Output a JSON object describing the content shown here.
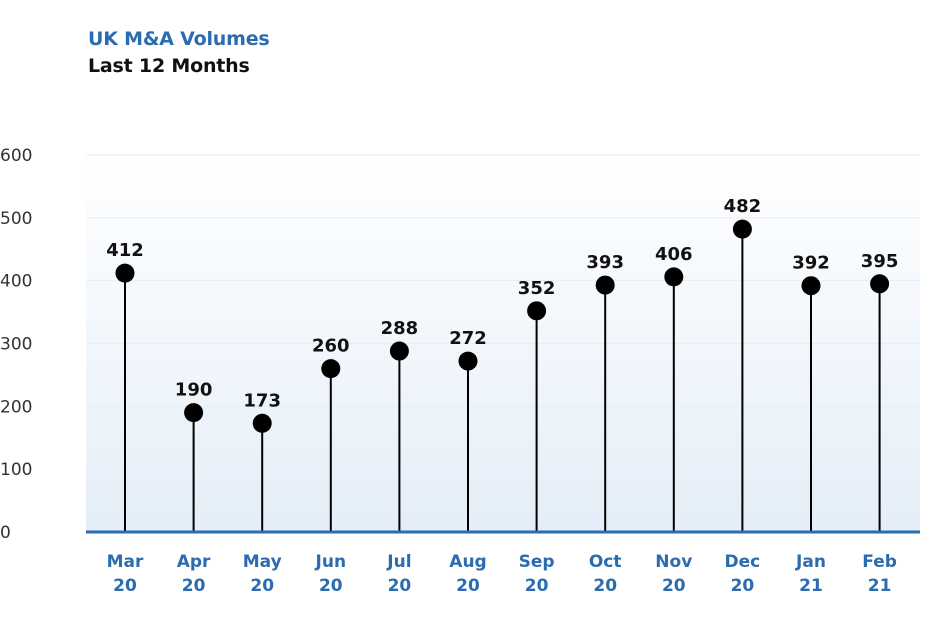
{
  "chart_data": {
    "type": "lollipop",
    "title": "UK M&A Volumes",
    "subtitle": "Last 12 Months",
    "categories": [
      [
        "Mar",
        "20"
      ],
      [
        "Apr",
        "20"
      ],
      [
        "May",
        "20"
      ],
      [
        "Jun",
        "20"
      ],
      [
        "Jul",
        "20"
      ],
      [
        "Aug",
        "20"
      ],
      [
        "Sep",
        "20"
      ],
      [
        "Oct",
        "20"
      ],
      [
        "Nov",
        "20"
      ],
      [
        "Dec",
        "20"
      ],
      [
        "Jan",
        "21"
      ],
      [
        "Feb",
        "21"
      ]
    ],
    "values": [
      412,
      190,
      173,
      260,
      288,
      272,
      352,
      393,
      406,
      482,
      392,
      395
    ],
    "yticks": [
      0,
      100,
      200,
      300,
      400,
      500,
      600
    ],
    "ylim": [
      0,
      600
    ],
    "grid": true,
    "colors": {
      "title": "#2b6cb0",
      "axis": "#2b6cb0",
      "marker": "#000000",
      "gradient_top": "#ffffff",
      "gradient_bottom": "#e4eef8"
    }
  }
}
